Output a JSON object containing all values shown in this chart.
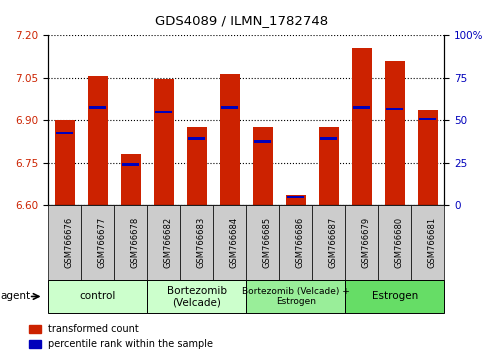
{
  "title": "GDS4089 / ILMN_1782748",
  "samples": [
    "GSM766676",
    "GSM766677",
    "GSM766678",
    "GSM766682",
    "GSM766683",
    "GSM766684",
    "GSM766685",
    "GSM766686",
    "GSM766687",
    "GSM766679",
    "GSM766680",
    "GSM766681"
  ],
  "red_values": [
    6.9,
    7.055,
    6.78,
    7.045,
    6.875,
    7.065,
    6.875,
    6.635,
    6.875,
    7.155,
    7.11,
    6.935
  ],
  "blue_values": [
    6.855,
    6.945,
    6.745,
    6.93,
    6.835,
    6.945,
    6.825,
    6.63,
    6.835,
    6.945,
    6.94,
    6.905
  ],
  "ylim_min": 6.6,
  "ylim_max": 7.2,
  "yticks_left": [
    6.6,
    6.75,
    6.9,
    7.05,
    7.2
  ],
  "yticks_right_pct": [
    0,
    25,
    50,
    75,
    100
  ],
  "group_boundaries": [
    {
      "start": 0,
      "end": 2,
      "label": "control",
      "color": "#ccffcc"
    },
    {
      "start": 3,
      "end": 5,
      "label": "Bortezomib\n(Velcade)",
      "color": "#ccffcc"
    },
    {
      "start": 6,
      "end": 8,
      "label": "Bortezomib (Velcade) +\nEstrogen",
      "color": "#99ee99"
    },
    {
      "start": 9,
      "end": 11,
      "label": "Estrogen",
      "color": "#66dd66"
    }
  ],
  "bar_color": "#cc2200",
  "blue_marker_color": "#0000bb",
  "xtick_bg_color": "#cccccc",
  "legend_labels": [
    "transformed count",
    "percentile rank within the sample"
  ]
}
